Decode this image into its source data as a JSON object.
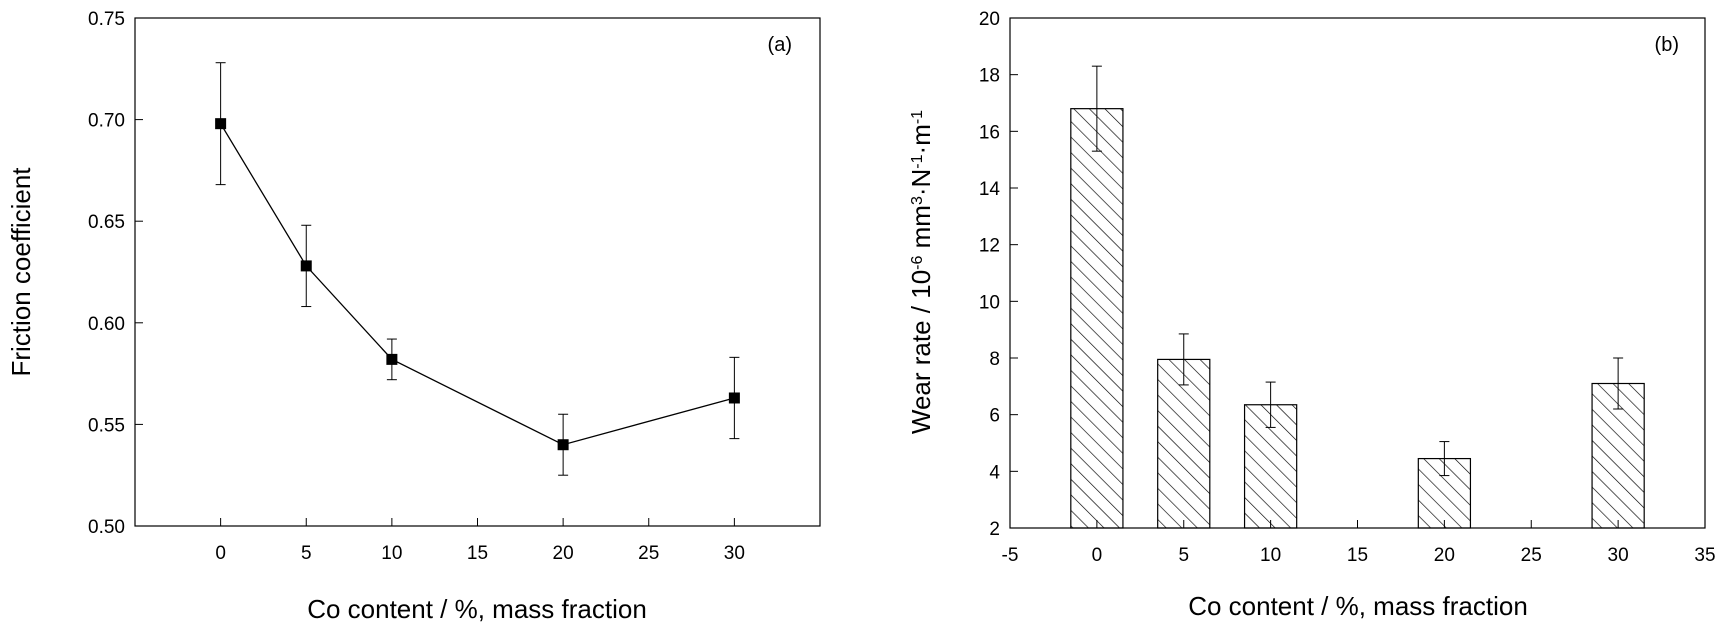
{
  "chart_data": [
    {
      "type": "line",
      "panel_label": "(a)",
      "title": "",
      "xlabel": "Co content  / %, mass fraction",
      "ylabel": "Friction coefficient",
      "xlim": [
        -5,
        35
      ],
      "ylim": [
        0.5,
        0.75
      ],
      "x_ticks": [
        0,
        5,
        10,
        15,
        20,
        25,
        30
      ],
      "y_ticks": [
        0.5,
        0.55,
        0.6,
        0.65,
        0.7,
        0.75
      ],
      "x_tick_labels": [
        "0",
        "5",
        "10",
        "15",
        "20",
        "25",
        "30"
      ],
      "y_tick_labels": [
        "0.50",
        "0.55",
        "0.60",
        "0.65",
        "0.70",
        "0.75"
      ],
      "grid": false,
      "marker": "square",
      "color": "#000000",
      "x": [
        0,
        5,
        10,
        20,
        30
      ],
      "y": [
        0.698,
        0.628,
        0.582,
        0.54,
        0.563
      ],
      "error": [
        0.03,
        0.02,
        0.01,
        0.015,
        0.02
      ]
    },
    {
      "type": "bar",
      "panel_label": "(b)",
      "title": "",
      "xlabel": "Co content / %, mass fraction",
      "ylabel_parts": [
        "Wear rate / 10",
        "-6",
        " mm",
        "3",
        "·N",
        "-1",
        "·m",
        "-1"
      ],
      "xlim": [
        -5,
        35
      ],
      "ylim": [
        2,
        20
      ],
      "x_ticks": [
        -5,
        0,
        5,
        10,
        15,
        20,
        25,
        30,
        35
      ],
      "y_ticks": [
        2,
        4,
        6,
        8,
        10,
        12,
        14,
        16,
        18,
        20
      ],
      "x_tick_labels": [
        "-5",
        "0",
        "5",
        "10",
        "15",
        "20",
        "25",
        "30",
        "35"
      ],
      "y_tick_labels": [
        "2",
        "4",
        "6",
        "8",
        "10",
        "12",
        "14",
        "16",
        "18",
        "20"
      ],
      "grid": false,
      "fill": "diagonal-hatch",
      "color": "#000000",
      "x": [
        0,
        5,
        10,
        20,
        30
      ],
      "values": [
        16.8,
        7.95,
        6.35,
        4.45,
        7.1
      ],
      "error": [
        1.5,
        0.9,
        0.8,
        0.6,
        0.9
      ],
      "bar_width_units": 3
    }
  ]
}
